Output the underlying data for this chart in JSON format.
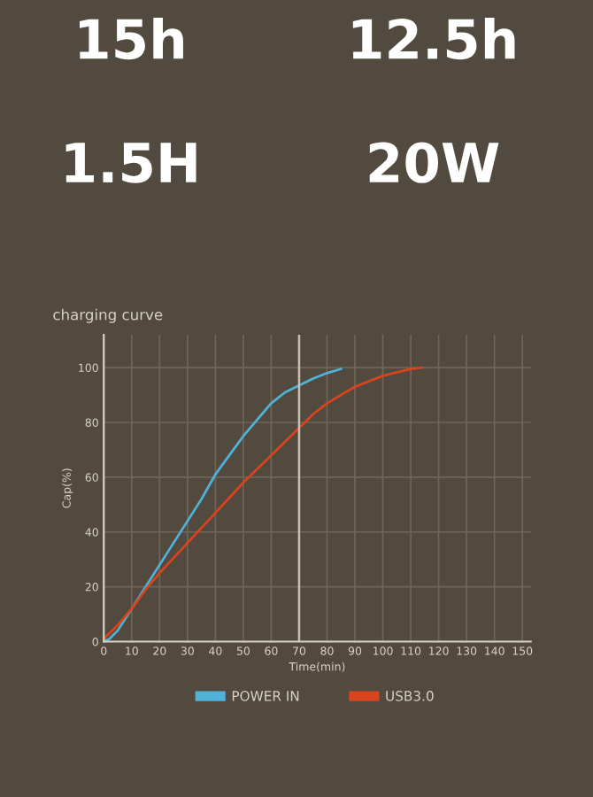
{
  "chart_data": [
    {
      "type": "other",
      "annotations": [
        "15h",
        "12.5h",
        "1.5H",
        "20W"
      ]
    },
    {
      "type": "line",
      "title": "charging curve",
      "xlabel": "Time(min)",
      "ylabel": "Cap(%)",
      "xlim": [
        0,
        153
      ],
      "ylim": [
        0,
        112
      ],
      "xticks": [
        0,
        10,
        20,
        30,
        40,
        50,
        60,
        70,
        80,
        90,
        100,
        110,
        120,
        130,
        140,
        150
      ],
      "yticks": [
        0,
        20,
        40,
        60,
        80,
        100
      ],
      "grid": true,
      "legend": "bottom",
      "marker": "none",
      "line_style": "solid",
      "ref_lines": [
        {
          "axis": "x",
          "value": 70,
          "color": "#c8c0b0"
        }
      ],
      "series": [
        {
          "name": "POWER IN",
          "color": "#4fb3d9",
          "x": [
            0,
            2,
            5,
            10,
            15,
            20,
            25,
            30,
            35,
            40,
            45,
            50,
            55,
            60,
            65,
            70,
            75,
            80,
            85
          ],
          "values": [
            0,
            1,
            4,
            12,
            20,
            28,
            36,
            44,
            52,
            61,
            68,
            75,
            81,
            87,
            91,
            93.5,
            96,
            98,
            99.5
          ]
        },
        {
          "name": "USB3.0",
          "color": "#d9441c",
          "x": [
            0,
            5,
            10,
            15,
            20,
            30,
            40,
            50,
            60,
            70,
            75,
            80,
            90,
            100,
            110,
            114
          ],
          "values": [
            1,
            6,
            12,
            19,
            25,
            36,
            47,
            58,
            68,
            78,
            83,
            87,
            93,
            97,
            99.5,
            100
          ]
        }
      ]
    }
  ]
}
